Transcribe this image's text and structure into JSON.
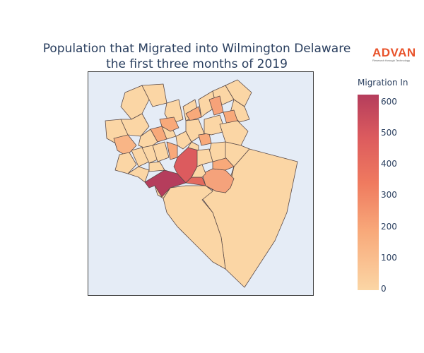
{
  "title": {
    "line1": "Population that Migrated into Wilmington Delaware",
    "line2": "the first three months of 2019"
  },
  "logo": {
    "wordmark": "ADVAN",
    "tagline": "Research through Technology",
    "color": "#e8522a"
  },
  "colorbar": {
    "title": "Migration In",
    "ticks": [
      "600",
      "500",
      "400",
      "300",
      "200",
      "100",
      "0"
    ],
    "range": [
      0,
      630
    ],
    "colorscale": [
      "#fbd6a5",
      "#f8a97a",
      "#ef7a5f",
      "#dc5b5e",
      "#b53d5c"
    ]
  },
  "map": {
    "background": "#e5ecf6",
    "border_color": "#5a4a48",
    "regions": [
      {
        "id": "southeast-large",
        "value": 30
      },
      {
        "id": "south-central",
        "value": 25
      },
      {
        "id": "southwest-river",
        "value": 20
      },
      {
        "id": "dark-red-south",
        "value": 610
      },
      {
        "id": "central-red",
        "value": 470
      },
      {
        "id": "east-orange",
        "value": 280
      },
      {
        "id": "north-orange-a",
        "value": 230
      },
      {
        "id": "north-orange-b",
        "value": 250
      },
      {
        "id": "west-orange",
        "value": 160
      }
    ]
  }
}
